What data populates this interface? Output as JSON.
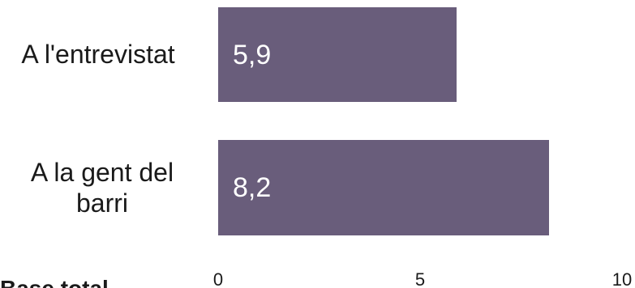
{
  "chart_data": {
    "type": "bar",
    "orientation": "horizontal",
    "categories": [
      "A l'entrevistat",
      "A la gent del barri"
    ],
    "values": [
      5.9,
      8.2
    ],
    "value_labels": [
      "5,9",
      "8,2"
    ],
    "xlim": [
      0,
      10
    ],
    "x_ticks": [
      "0",
      "5",
      "10"
    ],
    "grid": false,
    "bar_color": "#695d7b"
  },
  "footnote": "Base total"
}
